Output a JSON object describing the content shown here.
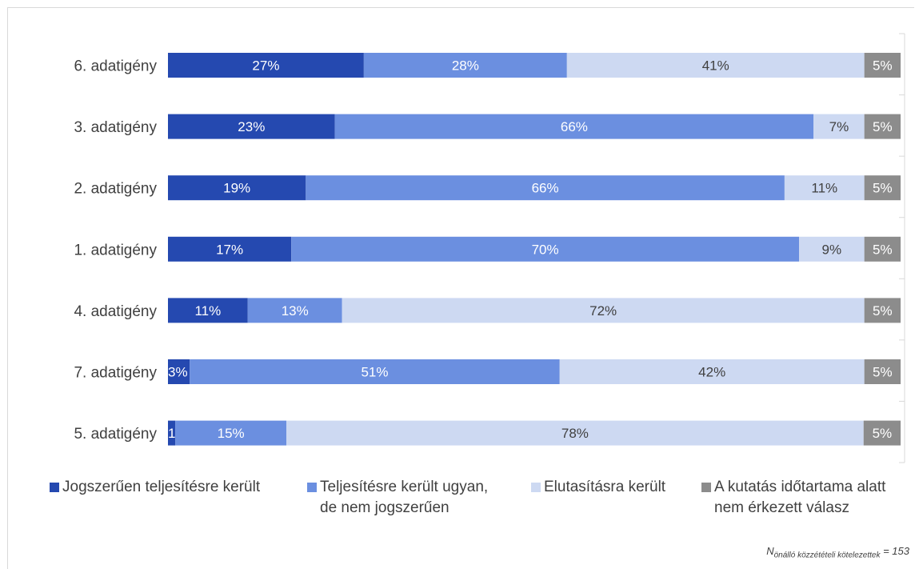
{
  "chart_data": {
    "type": "bar",
    "orientation": "horizontal",
    "stacked": true,
    "categories": [
      "6. adatigény",
      "3. adatigény",
      "2. adatigény",
      "1. adatigény",
      "4. adatigény",
      "7. adatigény",
      "5. adatigény"
    ],
    "series": [
      {
        "name": "Jogszerűen teljesítésre került",
        "color": "#2549b0",
        "label_color": "#ffffff",
        "values": [
          27,
          23,
          19,
          17,
          11,
          3,
          1
        ]
      },
      {
        "name": "Teljesítésre került ugyan, de nem jogszerűen",
        "color": "#6b8fe0",
        "label_color": "#ffffff",
        "values": [
          28,
          66,
          66,
          70,
          13,
          51,
          15
        ]
      },
      {
        "name": "Elutasításra került",
        "color": "#cdd9f2",
        "label_color": "#404040",
        "values": [
          41,
          7,
          11,
          9,
          72,
          42,
          78
        ]
      },
      {
        "name": "A kutatás időtartama alatt nem érkezett válasz",
        "color": "#8c8c8c",
        "label_color": "#ffffff",
        "values": [
          5,
          5,
          5,
          5,
          5,
          5,
          5
        ]
      }
    ],
    "value_suffix": "%",
    "legend_position": "bottom",
    "grid": false
  },
  "legend": {
    "items": [
      {
        "line1": "Jogszerűen teljesítésre került",
        "line2": ""
      },
      {
        "line1": "Teljesítésre került ugyan,",
        "line2": "de nem jogszerűen"
      },
      {
        "line1": "Elutasításra került",
        "line2": ""
      },
      {
        "line1": "A kutatás időtartama alatt",
        "line2": "nem érkezett válasz"
      }
    ]
  },
  "footnote": {
    "n_symbol": "N",
    "subscript": "önálló közzétételi kötelezettek",
    "value": " = 153"
  }
}
